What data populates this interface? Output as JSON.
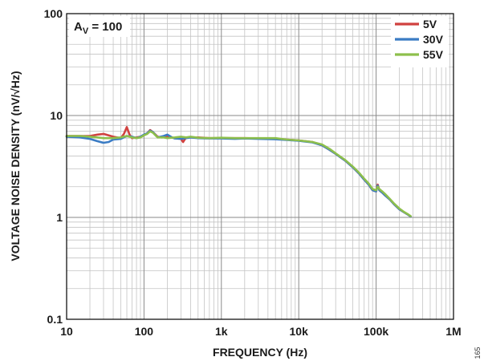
{
  "chart_data": {
    "type": "line",
    "title": "",
    "xlabel": "FREQUENCY (Hz)",
    "ylabel": "VOLTAGE NOISE DENSITY (nV/√Hz)",
    "x_scale": "log",
    "y_scale": "log",
    "xlim": [
      10,
      1000000
    ],
    "ylim": [
      0.1,
      100
    ],
    "x_ticks": [
      10,
      100,
      1000,
      10000,
      100000,
      1000000
    ],
    "x_tick_labels": [
      "10",
      "100",
      "1k",
      "10k",
      "100k",
      "1M"
    ],
    "y_ticks": [
      0.1,
      1,
      10,
      100
    ],
    "y_tick_labels": [
      "0.1",
      "1",
      "10",
      "100"
    ],
    "grid": true,
    "legend_position": "top-right",
    "annotation": {
      "base": "A",
      "sub": "V",
      "rest": " = 100"
    },
    "figure_id": "165",
    "series": [
      {
        "name": "5V",
        "color": "#d0413f",
        "x": [
          10,
          15,
          20,
          25,
          30,
          40,
          50,
          55,
          60,
          65,
          70,
          80,
          90,
          100,
          110,
          120,
          130,
          150,
          170,
          200,
          250,
          300,
          320,
          350,
          400,
          500,
          700,
          1000,
          1500,
          2000,
          3000,
          5000,
          7000,
          10000,
          15000,
          20000,
          25000,
          30000,
          40000,
          50000,
          60000,
          70000,
          80000,
          90000,
          100000,
          105000,
          110000,
          120000,
          130000,
          150000,
          170000,
          200000,
          230000,
          260000,
          280000
        ],
        "y": [
          6.3,
          6.3,
          6.3,
          6.5,
          6.6,
          6.2,
          6.0,
          6.6,
          7.7,
          6.5,
          6.0,
          6.1,
          6.2,
          6.4,
          6.7,
          7.2,
          6.9,
          6.2,
          6.1,
          6.2,
          6.0,
          5.9,
          5.5,
          6.1,
          6.1,
          6.1,
          6.0,
          6.0,
          6.0,
          6.0,
          5.95,
          5.9,
          5.8,
          5.7,
          5.5,
          5.1,
          4.6,
          4.2,
          3.6,
          3.1,
          2.7,
          2.35,
          2.1,
          1.85,
          1.8,
          2.1,
          1.85,
          1.75,
          1.65,
          1.5,
          1.35,
          1.2,
          1.12,
          1.06,
          1.02
        ]
      },
      {
        "name": "30V",
        "color": "#3b7cc4",
        "x": [
          10,
          15,
          20,
          25,
          30,
          35,
          40,
          50,
          60,
          70,
          80,
          90,
          100,
          110,
          120,
          130,
          150,
          180,
          200,
          230,
          250,
          300,
          350,
          400,
          500,
          700,
          1000,
          1500,
          2000,
          3000,
          5000,
          7000,
          10000,
          15000,
          20000,
          25000,
          30000,
          40000,
          50000,
          60000,
          70000,
          80000,
          90000,
          100000,
          105000,
          110000,
          120000,
          130000,
          150000,
          170000,
          200000,
          230000,
          260000,
          280000
        ],
        "y": [
          6.2,
          6.1,
          5.9,
          5.6,
          5.4,
          5.5,
          5.8,
          5.9,
          6.3,
          6.2,
          6.0,
          6.2,
          6.5,
          6.7,
          7.1,
          6.9,
          6.1,
          6.3,
          6.5,
          6.1,
          5.95,
          5.9,
          6.0,
          6.1,
          6.0,
          5.95,
          5.95,
          5.9,
          5.95,
          5.9,
          5.85,
          5.75,
          5.65,
          5.45,
          5.1,
          4.6,
          4.2,
          3.6,
          3.1,
          2.7,
          2.35,
          2.1,
          1.85,
          1.8,
          2.05,
          1.85,
          1.75,
          1.65,
          1.5,
          1.35,
          1.2,
          1.12,
          1.06,
          1.02
        ]
      },
      {
        "name": "55V",
        "color": "#8dbf4c",
        "x": [
          10,
          15,
          20,
          25,
          30,
          40,
          50,
          60,
          70,
          80,
          90,
          100,
          110,
          120,
          130,
          150,
          180,
          200,
          250,
          300,
          350,
          400,
          500,
          700,
          1000,
          1500,
          2000,
          3000,
          5000,
          7000,
          10000,
          15000,
          20000,
          25000,
          30000,
          40000,
          50000,
          60000,
          70000,
          80000,
          90000,
          100000,
          105000,
          110000,
          120000,
          130000,
          150000,
          170000,
          200000,
          230000,
          260000,
          280000
        ],
        "y": [
          6.3,
          6.3,
          6.2,
          6.1,
          6.0,
          6.0,
          6.1,
          6.3,
          6.1,
          6.0,
          6.1,
          6.4,
          6.6,
          7.0,
          6.8,
          6.1,
          6.1,
          6.0,
          6.1,
          6.2,
          6.1,
          6.2,
          6.05,
          6.0,
          6.05,
          6.0,
          6.0,
          6.0,
          6.0,
          5.8,
          5.7,
          5.5,
          5.2,
          4.7,
          4.25,
          3.65,
          3.15,
          2.75,
          2.4,
          2.15,
          1.9,
          1.85,
          2.0,
          1.9,
          1.8,
          1.7,
          1.52,
          1.37,
          1.22,
          1.13,
          1.07,
          1.03
        ]
      }
    ]
  }
}
